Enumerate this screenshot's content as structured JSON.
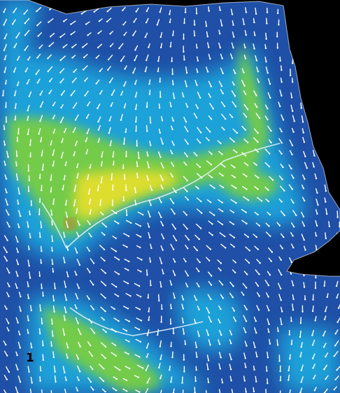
{
  "panel_label": "1",
  "colors": {
    "background": "#000000",
    "low": "#1f4fa6",
    "mid_low": "#1aa6dc",
    "mid": "#7ed03a",
    "high": "#f0e12a",
    "peak": "#e8502a",
    "vector": "#ffffff"
  },
  "content": "velocity-field-map"
}
